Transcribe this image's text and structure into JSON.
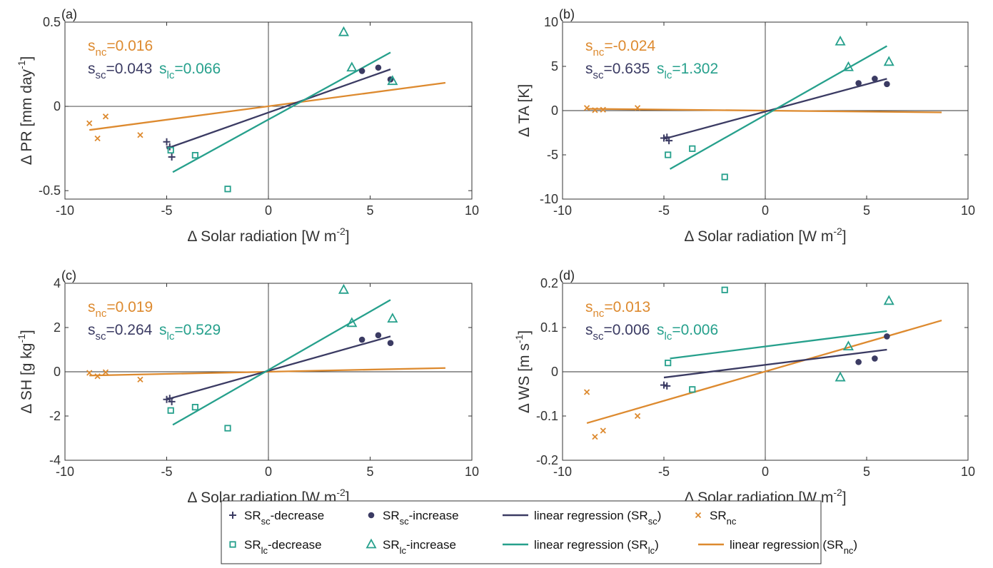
{
  "colors": {
    "sc": "#3b3b63",
    "lc": "#26a08c",
    "nc": "#dd8a2f",
    "axis": "#333333"
  },
  "legend": {
    "items": [
      {
        "key": "sc_decrease",
        "marker": "plus",
        "color": "sc",
        "base": "SR",
        "sub": "sc",
        "suffix": "-decrease"
      },
      {
        "key": "sc_increase",
        "marker": "dot",
        "color": "sc",
        "base": "SR",
        "sub": "sc",
        "suffix": "-increase"
      },
      {
        "key": "reg_sc",
        "marker": "line",
        "color": "sc",
        "base": "linear regression (SR",
        "sub": "sc",
        "suffix": ")"
      },
      {
        "key": "nc",
        "marker": "cross",
        "color": "nc",
        "base": "SR",
        "sub": "nc",
        "suffix": ""
      },
      {
        "key": "lc_decrease",
        "marker": "square",
        "color": "lc",
        "base": "SR",
        "sub": "lc",
        "suffix": "-decrease"
      },
      {
        "key": "lc_increase",
        "marker": "triangle",
        "color": "lc",
        "base": "SR",
        "sub": "lc",
        "suffix": "-increase"
      },
      {
        "key": "reg_lc",
        "marker": "line",
        "color": "lc",
        "base": "linear regression (SR",
        "sub": "lc",
        "suffix": ")"
      },
      {
        "key": "reg_nc",
        "marker": "line",
        "color": "nc",
        "base": "linear regression (SR",
        "sub": "nc",
        "suffix": ")"
      }
    ]
  },
  "chart_data": [
    {
      "type": "scatter",
      "panel_label": "(a)",
      "xlabel": "Δ Solar radiation [W m-2]",
      "ylabel": "Δ PR [mm day-1]",
      "xlim": [
        -10,
        10
      ],
      "ylim": [
        -0.55,
        0.5
      ],
      "xticks": [
        "-10",
        "-5",
        "0",
        "5",
        "10"
      ],
      "yticks": [
        {
          "value": 0.5,
          "label": "0.5"
        },
        {
          "value": 0,
          "label": "0"
        },
        {
          "value": -0.5,
          "label": "-0.5"
        }
      ],
      "annotations": {
        "nc": "=0.016",
        "sc": "=0.043",
        "lc": "=0.066"
      },
      "series": {
        "sc_decrease": [
          [
            -5.0,
            -0.21
          ],
          [
            -4.85,
            -0.24
          ],
          [
            -4.75,
            -0.3
          ]
        ],
        "sc_increase": [
          [
            4.6,
            0.21
          ],
          [
            5.4,
            0.23
          ],
          [
            6.0,
            0.16
          ]
        ],
        "lc_decrease": [
          [
            -4.8,
            -0.26
          ],
          [
            -3.6,
            -0.29
          ],
          [
            -2.0,
            -0.49
          ]
        ],
        "lc_increase": [
          [
            3.7,
            0.44
          ],
          [
            4.1,
            0.23
          ],
          [
            6.1,
            0.15
          ]
        ],
        "nc": [
          [
            -8.8,
            -0.1
          ],
          [
            -8.4,
            -0.19
          ],
          [
            -8.0,
            -0.06
          ],
          [
            -6.3,
            -0.17
          ]
        ]
      },
      "regressions": {
        "sc": [
          [
            -5.0,
            -0.25
          ],
          [
            6.0,
            0.22
          ]
        ],
        "lc": [
          [
            -4.7,
            -0.39
          ],
          [
            6.0,
            0.32
          ]
        ],
        "nc": [
          [
            -8.8,
            -0.14
          ],
          [
            8.7,
            0.14
          ]
        ]
      }
    },
    {
      "type": "scatter",
      "panel_label": "(b)",
      "xlabel": "Δ Solar radiation [W m-2]",
      "ylabel": "Δ TA [K]",
      "xlim": [
        -10,
        10
      ],
      "ylim": [
        -10,
        10
      ],
      "xticks": [
        "-10",
        "-5",
        "0",
        "5",
        "10"
      ],
      "yticks": [
        {
          "value": 10,
          "label": "10"
        },
        {
          "value": 5,
          "label": "5"
        },
        {
          "value": 0,
          "label": "0"
        },
        {
          "value": -5,
          "label": "-5"
        },
        {
          "value": -10,
          "label": "-10"
        }
      ],
      "annotations": {
        "nc": "=-0.024",
        "sc": "=0.635",
        "lc": "=1.302"
      },
      "series": {
        "sc_decrease": [
          [
            -5.0,
            -3.1
          ],
          [
            -4.85,
            -3.0
          ],
          [
            -4.75,
            -3.4
          ]
        ],
        "sc_increase": [
          [
            4.6,
            3.1
          ],
          [
            5.4,
            3.6
          ],
          [
            6.0,
            3.0
          ]
        ],
        "lc_decrease": [
          [
            -4.8,
            -5.0
          ],
          [
            -3.6,
            -4.3
          ],
          [
            -2.0,
            -7.5
          ]
        ],
        "lc_increase": [
          [
            3.7,
            7.8
          ],
          [
            4.1,
            4.9
          ],
          [
            6.1,
            5.5
          ]
        ],
        "nc": [
          [
            -8.8,
            0.3
          ],
          [
            -8.4,
            0.05
          ],
          [
            -8.0,
            0.1
          ],
          [
            -6.3,
            0.3
          ]
        ]
      },
      "regressions": {
        "sc": [
          [
            -5.0,
            -3.2
          ],
          [
            6.0,
            3.6
          ]
        ],
        "lc": [
          [
            -4.7,
            -6.6
          ],
          [
            6.0,
            7.3
          ]
        ],
        "nc": [
          [
            -8.8,
            0.2
          ],
          [
            8.7,
            -0.2
          ]
        ]
      }
    },
    {
      "type": "scatter",
      "panel_label": "(c)",
      "xlabel": "Δ Solar radiation [W m-2]",
      "ylabel": "Δ SH [g kg-1]",
      "xlim": [
        -10,
        10
      ],
      "ylim": [
        -4,
        4
      ],
      "xticks": [
        "-10",
        "-5",
        "0",
        "5",
        "10"
      ],
      "yticks": [
        {
          "value": 4,
          "label": "4"
        },
        {
          "value": 2,
          "label": "2"
        },
        {
          "value": 0,
          "label": "0"
        },
        {
          "value": -2,
          "label": "-2"
        },
        {
          "value": -4,
          "label": "-4"
        }
      ],
      "annotations": {
        "nc": "=0.019",
        "sc": "=0.264",
        "lc": "=0.529"
      },
      "series": {
        "sc_decrease": [
          [
            -5.0,
            -1.25
          ],
          [
            -4.85,
            -1.2
          ],
          [
            -4.75,
            -1.35
          ]
        ],
        "sc_increase": [
          [
            4.6,
            1.45
          ],
          [
            5.4,
            1.65
          ],
          [
            6.0,
            1.3
          ]
        ],
        "lc_decrease": [
          [
            -4.8,
            -1.75
          ],
          [
            -3.6,
            -1.6
          ],
          [
            -2.0,
            -2.55
          ]
        ],
        "lc_increase": [
          [
            3.7,
            3.7
          ],
          [
            4.1,
            2.2
          ],
          [
            6.1,
            2.4
          ]
        ],
        "nc": [
          [
            -8.8,
            -0.05
          ],
          [
            -8.4,
            -0.2
          ],
          [
            -8.0,
            -0.02
          ],
          [
            -6.3,
            -0.35
          ]
        ]
      },
      "regressions": {
        "sc": [
          [
            -5.0,
            -1.25
          ],
          [
            6.0,
            1.6
          ]
        ],
        "lc": [
          [
            -4.7,
            -2.4
          ],
          [
            6.0,
            3.25
          ]
        ],
        "nc": [
          [
            -8.8,
            -0.17
          ],
          [
            8.7,
            0.17
          ]
        ]
      }
    },
    {
      "type": "scatter",
      "panel_label": "(d)",
      "xlabel": "Δ Solar radiation [W m-2]",
      "ylabel": "Δ WS [m s-1]",
      "xlim": [
        -10,
        10
      ],
      "ylim": [
        -0.2,
        0.2
      ],
      "xticks": [
        "-10",
        "-5",
        "0",
        "5",
        "10"
      ],
      "yticks": [
        {
          "value": 0.2,
          "label": "0.2"
        },
        {
          "value": 0.1,
          "label": "0.1"
        },
        {
          "value": 0,
          "label": "0"
        },
        {
          "value": -0.1,
          "label": "-0.1"
        },
        {
          "value": -0.2,
          "label": "-0.2"
        }
      ],
      "annotations": {
        "nc": "=0.013",
        "sc": "=0.006",
        "lc": "=0.006"
      },
      "series": {
        "sc_decrease": [
          [
            -5.0,
            -0.03
          ],
          [
            -4.85,
            -0.032
          ]
        ],
        "sc_increase": [
          [
            4.6,
            0.022
          ],
          [
            5.4,
            0.03
          ],
          [
            6.0,
            0.08
          ]
        ],
        "lc_decrease": [
          [
            -4.8,
            0.02
          ],
          [
            -3.6,
            -0.04
          ],
          [
            -2.0,
            0.185
          ]
        ],
        "lc_increase": [
          [
            3.7,
            -0.013
          ],
          [
            4.1,
            0.057
          ],
          [
            6.1,
            0.16
          ]
        ],
        "nc": [
          [
            -8.8,
            -0.046
          ],
          [
            -8.4,
            -0.147
          ],
          [
            -8.0,
            -0.133
          ],
          [
            -6.3,
            -0.1
          ]
        ]
      },
      "regressions": {
        "sc": [
          [
            -5.0,
            -0.013
          ],
          [
            6.0,
            0.05
          ]
        ],
        "lc": [
          [
            -4.7,
            0.03
          ],
          [
            6.0,
            0.092
          ]
        ],
        "nc": [
          [
            -8.8,
            -0.116
          ],
          [
            8.7,
            0.116
          ]
        ]
      }
    }
  ]
}
